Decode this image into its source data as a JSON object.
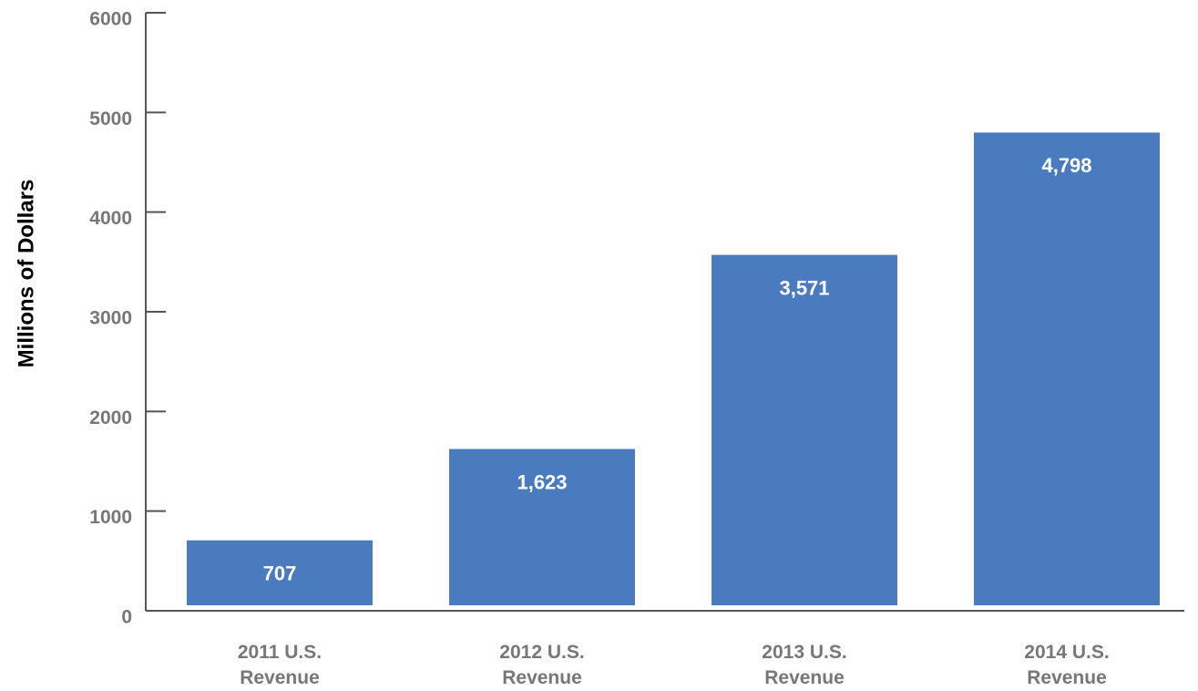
{
  "chart_data": {
    "type": "bar",
    "y_label": "Millions of Dollars",
    "categories": [
      "2011 U.S. Revenue",
      "2012 U.S. Revenue",
      "2013 U.S. Revenue",
      "2014 U.S. Revenue"
    ],
    "values": [
      707,
      1623,
      3571,
      4798
    ],
    "value_labels": [
      "707",
      "1,623",
      "3,571",
      "4,798"
    ],
    "color": "#4a7bbf",
    "ylim": [
      0,
      6000
    ],
    "yticks": [
      0,
      1000,
      2000,
      3000,
      4000,
      5000,
      6000
    ],
    "grid": false
  }
}
